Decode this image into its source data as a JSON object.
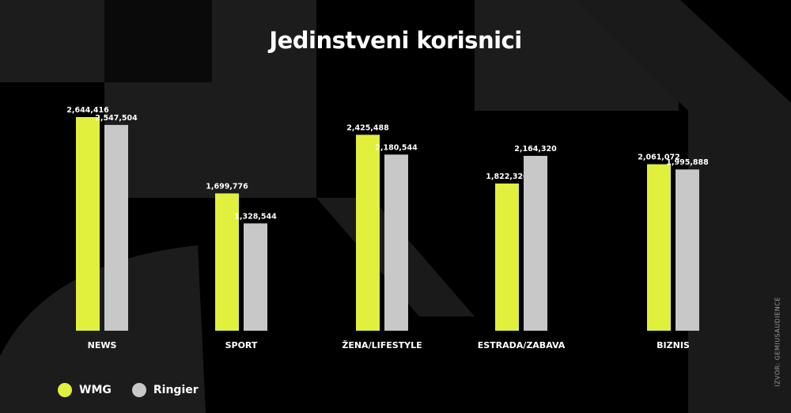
{
  "title": "Jedinstveni korisnici",
  "source": "IZVOR: GEMIUSAUDIENCE",
  "colors": {
    "wmg": "#e1f03c",
    "ringier": "#c8c8c8"
  },
  "legend": [
    {
      "label": "WMG",
      "color": "#e1f03c"
    },
    {
      "label": "Ringier",
      "color": "#c8c8c8"
    }
  ],
  "chart_data": {
    "type": "bar",
    "categories": [
      "NEWS",
      "SPORT",
      "ŽENA/LIFESTYLE",
      "ESTRADA/ZABAVA",
      "BIZNIS"
    ],
    "series": [
      {
        "name": "WMG",
        "values": [
          2644416,
          1699776,
          2425488,
          1822320,
          2061072
        ],
        "labels": [
          "2,644,416",
          "1,699,776",
          "2,425,488",
          "1,822,320",
          "2,061,072"
        ]
      },
      {
        "name": "Ringier",
        "values": [
          2547504,
          1328544,
          2180544,
          2164320,
          1995888
        ],
        "labels": [
          "2,547,504",
          "1,328,544",
          "2,180,544",
          "2,164,320",
          "1,995,888"
        ]
      }
    ],
    "xlabel": "",
    "ylabel": "",
    "grid": false,
    "legend_position": "bottom-left"
  }
}
